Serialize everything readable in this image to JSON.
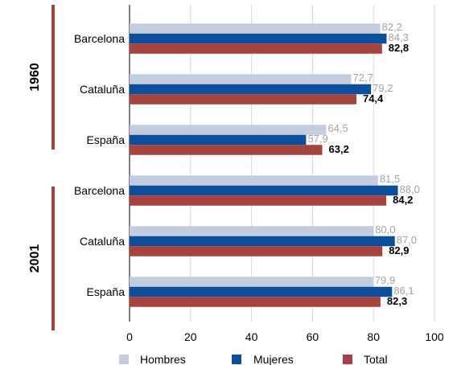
{
  "chart_data": {
    "type": "bar",
    "orientation": "horizontal",
    "xlim": [
      0,
      100
    ],
    "x_ticks": [
      0,
      20,
      40,
      60,
      80,
      100
    ],
    "grid": true,
    "legend_position": "bottom",
    "colors": {
      "Hombres": "#c3cde0",
      "Mujeres": "#0b4f9c",
      "Total": "#a8423c",
      "group_bar": "#a8423c"
    },
    "series": [
      {
        "name": "Hombres"
      },
      {
        "name": "Mujeres"
      },
      {
        "name": "Total"
      }
    ],
    "groups": [
      {
        "label": "1960",
        "categories": [
          {
            "name": "Barcelona",
            "values": [
              82.2,
              84.3,
              82.8
            ],
            "labels": [
              "82,2",
              "84,3",
              "82,8"
            ]
          },
          {
            "name": "Cataluña",
            "values": [
              72.7,
              79.2,
              74.4
            ],
            "labels": [
              "72,7",
              "79,2",
              "74,4"
            ]
          },
          {
            "name": "España",
            "values": [
              64.5,
              57.9,
              63.2
            ],
            "labels": [
              "64,5",
              "57,9",
              "63,2"
            ]
          }
        ]
      },
      {
        "label": "2001",
        "categories": [
          {
            "name": "Barcelona",
            "values": [
              81.5,
              88.0,
              84.2
            ],
            "labels": [
              "81,5",
              "88,0",
              "84,2"
            ]
          },
          {
            "name": "Cataluña",
            "values": [
              80.0,
              87.0,
              82.9
            ],
            "labels": [
              "80,0",
              "87,0",
              "82,9"
            ]
          },
          {
            "name": "España",
            "values": [
              79.9,
              86.1,
              82.3
            ],
            "labels": [
              "79,9",
              "86,1",
              "82,3"
            ]
          }
        ]
      }
    ]
  }
}
